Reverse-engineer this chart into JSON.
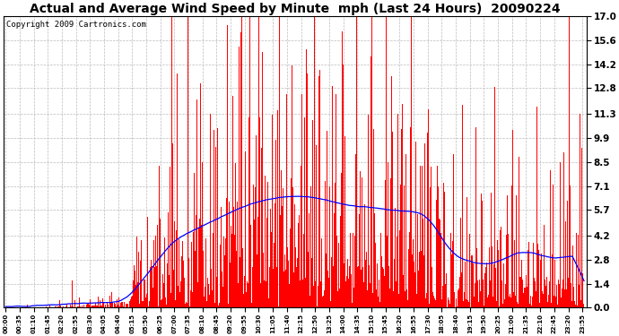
{
  "title": "Actual and Average Wind Speed by Minute  mph (Last 24 Hours)  20090224",
  "copyright": "Copyright 2009 Cartronics.com",
  "yticks": [
    0.0,
    1.4,
    2.8,
    4.2,
    5.7,
    7.1,
    8.5,
    9.9,
    11.3,
    12.8,
    14.2,
    15.6,
    17.0
  ],
  "ymin": 0.0,
  "ymax": 17.0,
  "bar_color": "#ff0000",
  "line_color": "#0000ff",
  "background_color": "#ffffff",
  "grid_color": "#bbbbbb",
  "title_fontsize": 10,
  "copyright_fontsize": 6.5,
  "tick_interval_minutes": 35,
  "fig_width": 6.9,
  "fig_height": 3.75,
  "dpi": 100
}
